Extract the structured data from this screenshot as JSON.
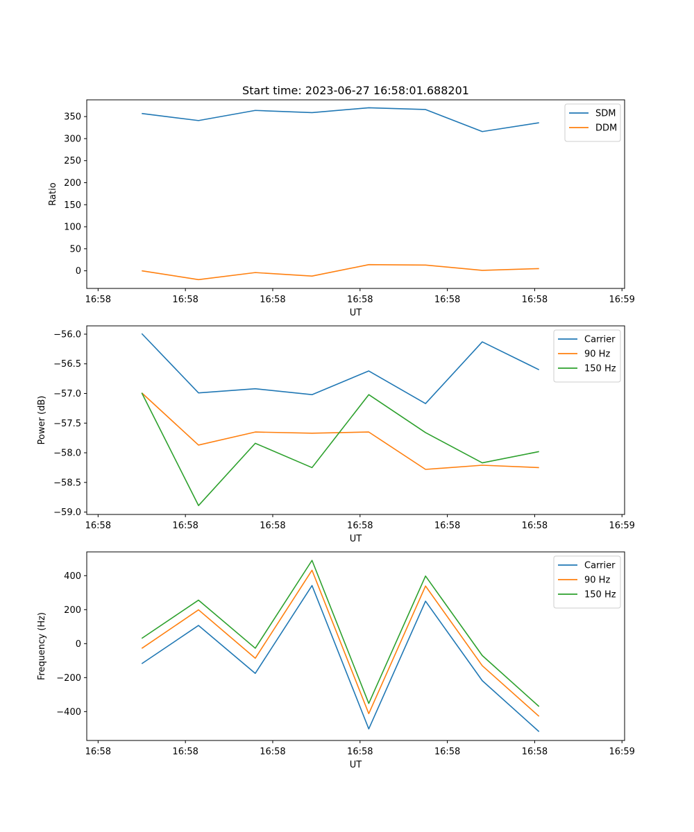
{
  "figure": {
    "title": "Start time: 2023-06-27 16:58:01.688201"
  },
  "chart_data": [
    {
      "type": "line",
      "title": "Start time: 2023-06-27 16:58:01.688201",
      "xlabel": "UT",
      "ylabel": "Ratio",
      "x_tick_labels": [
        "16:58",
        "16:58",
        "16:58",
        "16:58",
        "16:58",
        "16:58",
        "16:59"
      ],
      "ylim": [
        -40,
        388
      ],
      "y_ticks": [
        0,
        50,
        100,
        150,
        200,
        250,
        300,
        350
      ],
      "y_tick_labels": [
        "0",
        "50",
        "100",
        "150",
        "200",
        "250",
        "300",
        "350"
      ],
      "legend": "top-right",
      "series": [
        {
          "name": "SDM",
          "color": "#1f77b4",
          "values": [
            357,
            341,
            364,
            359,
            370,
            366,
            316,
            336
          ]
        },
        {
          "name": "DDM",
          "color": "#ff7f0e",
          "values": [
            0,
            -20,
            -4,
            -12,
            14,
            13,
            1,
            5
          ]
        }
      ]
    },
    {
      "type": "line",
      "xlabel": "UT",
      "ylabel": "Power (dB)",
      "x_tick_labels": [
        "16:58",
        "16:58",
        "16:58",
        "16:58",
        "16:58",
        "16:58",
        "16:59"
      ],
      "ylim": [
        -59.04,
        -55.86
      ],
      "y_ticks": [
        -59.0,
        -58.5,
        -58.0,
        -57.5,
        -57.0,
        -56.5,
        -56.0
      ],
      "y_tick_labels": [
        "−59.0",
        "−58.5",
        "−58.0",
        "−57.5",
        "−57.0",
        "−56.5",
        "−56.0"
      ],
      "legend": "top-right",
      "series": [
        {
          "name": "Carrier",
          "color": "#1f77b4",
          "values": [
            -55.99,
            -56.99,
            -56.92,
            -57.02,
            -56.62,
            -57.17,
            -56.13,
            -56.6
          ]
        },
        {
          "name": "90 Hz",
          "color": "#ff7f0e",
          "values": [
            -56.99,
            -57.87,
            -57.65,
            -57.67,
            -57.65,
            -58.28,
            -58.21,
            -58.25
          ]
        },
        {
          "name": "150 Hz",
          "color": "#2ca02c",
          "values": [
            -56.99,
            -58.89,
            -57.84,
            -58.25,
            -57.02,
            -57.66,
            -58.17,
            -57.98
          ]
        }
      ]
    },
    {
      "type": "line",
      "xlabel": "UT",
      "ylabel": "Frequency (Hz)",
      "x_tick_labels": [
        "16:58",
        "16:58",
        "16:58",
        "16:58",
        "16:58",
        "16:58",
        "16:59"
      ],
      "ylim": [
        -570,
        540
      ],
      "y_ticks": [
        -400,
        -200,
        0,
        200,
        400
      ],
      "y_tick_labels": [
        "−400",
        "−200",
        "0",
        "200",
        "400"
      ],
      "legend": "top-right",
      "series": [
        {
          "name": "Carrier",
          "color": "#1f77b4",
          "values": [
            -118,
            107,
            -175,
            342,
            -502,
            250,
            -218,
            -518
          ]
        },
        {
          "name": "90 Hz",
          "color": "#ff7f0e",
          "values": [
            -28,
            199,
            -86,
            432,
            -412,
            339,
            -130,
            -428
          ]
        },
        {
          "name": "150 Hz",
          "color": "#2ca02c",
          "values": [
            31,
            256,
            -27,
            490,
            -352,
            398,
            -70,
            -370
          ]
        }
      ]
    }
  ]
}
